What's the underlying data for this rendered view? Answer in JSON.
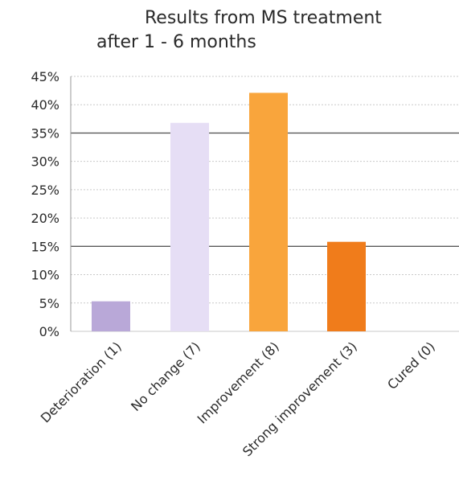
{
  "chart_data": {
    "type": "bar",
    "title_line1": "Results from MS treatment",
    "title_line2": "after 1 - 6 months",
    "xlabel": "",
    "ylabel": "",
    "categories": [
      "Deterioration (1)",
      "No change (7)",
      "Improvement (8)",
      "Strong improvement (3)",
      "Cured (0)"
    ],
    "values": [
      5.3,
      36.8,
      42.1,
      15.8,
      0
    ],
    "y_unit": "%",
    "ylim": [
      0,
      45
    ],
    "yticks": [
      0,
      5,
      10,
      15,
      20,
      25,
      30,
      35,
      40,
      45
    ],
    "ytick_labels": [
      "0%",
      "5%",
      "10%",
      "15%",
      "20%",
      "25%",
      "30%",
      "35%",
      "40%",
      "45%"
    ],
    "bar_colors": [
      "#b9a8d8",
      "#e6def5",
      "#f9a53c",
      "#f07c1b",
      "#f07c1b"
    ],
    "grid": true
  }
}
